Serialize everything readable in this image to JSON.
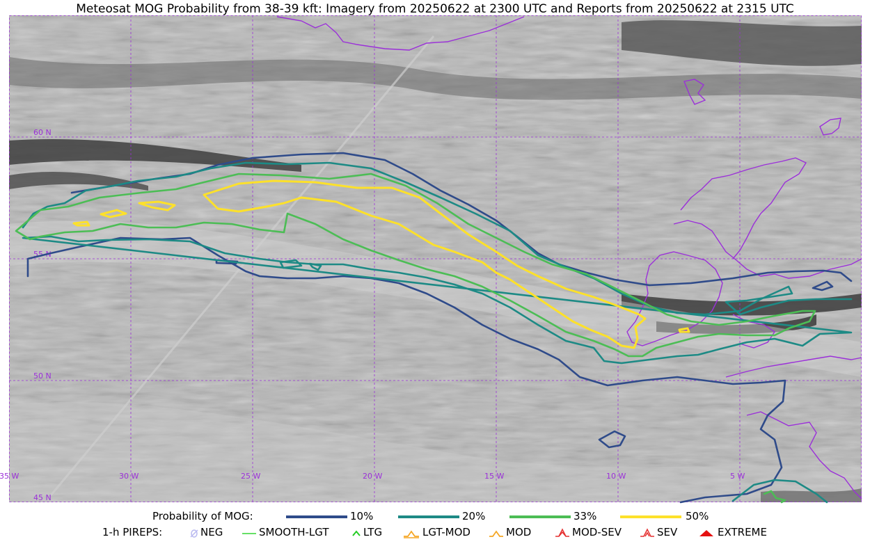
{
  "title": "Meteosat MOG Probability from 38-39 kft: Imagery from 20250622 at 2300 UTC and Reports from 20250622 at 2315 UTC",
  "map": {
    "lon_labels": [
      "35 W",
      "30 W",
      "25 W",
      "20 W",
      "15 W",
      "10 W",
      "5 W"
    ],
    "lat_labels": [
      "60 N",
      "55 N",
      "50 N",
      "45 N"
    ],
    "grid_color": "#9b30d9",
    "coast_color": "#9b30d9"
  },
  "legend": {
    "prob_title": "Probability of MOG:",
    "prob_levels": [
      {
        "label": "10%",
        "color": "#2f4b8a"
      },
      {
        "label": "20%",
        "color": "#1d8a85"
      },
      {
        "label": "33%",
        "color": "#4cbd55"
      },
      {
        "label": "50%",
        "color": "#fde12a"
      }
    ],
    "pirep_title": "1-h PIREPS:",
    "pireps": [
      {
        "label": "NEG",
        "color": "#b9b9f0",
        "icon": "neg-icon"
      },
      {
        "label": "SMOOTH-LGT",
        "color": "#33d633",
        "icon": "smooth-lgt-icon"
      },
      {
        "label": "LTG",
        "color": "#22cc22",
        "icon": "ltg-icon"
      },
      {
        "label": "LGT-MOD",
        "color": "#f5a623",
        "icon": "lgt-mod-icon"
      },
      {
        "label": "MOD",
        "color": "#f5a623",
        "icon": "mod-icon"
      },
      {
        "label": "MOD-SEV",
        "color": "#e53030",
        "icon": "mod-sev-icon"
      },
      {
        "label": "SEV",
        "color": "#e53030",
        "icon": "sev-icon"
      },
      {
        "label": "EXTREME",
        "color": "#e51010",
        "icon": "extreme-icon"
      }
    ]
  }
}
